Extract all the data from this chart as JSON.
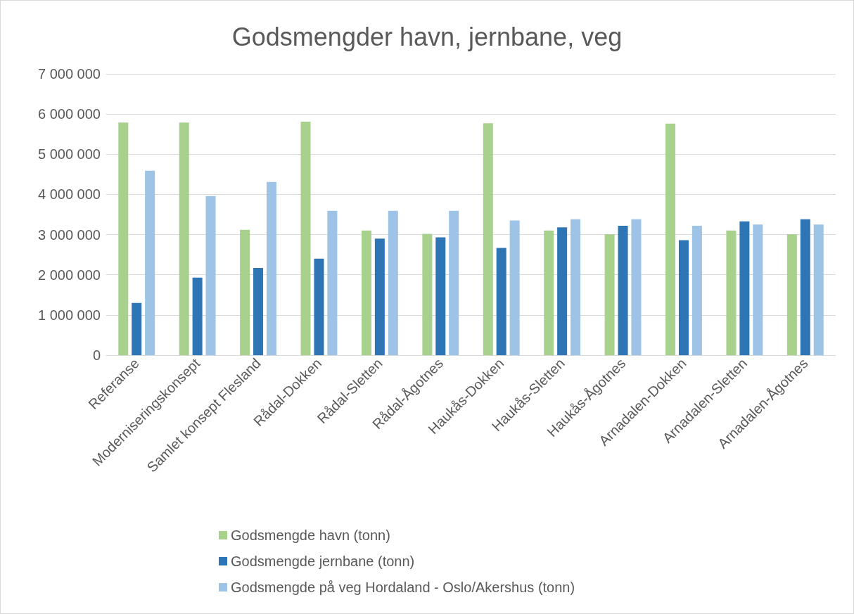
{
  "chart_data": {
    "type": "bar",
    "title": "Godsmengder havn, jernbane, veg",
    "categories": [
      "Referanse",
      "Moderniseringskonsept",
      "Samlet konsept Flesland",
      "Rådal-Dokken",
      "Rådal-Sletten",
      "Rådal-Ågotnes",
      "Haukås-Dokken",
      "Haukås-Sletten",
      "Haukås-Ågotnes",
      "Arnadalen-Dokken",
      "Arnadalen-Sletten",
      "Arnadalen-Ågotnes"
    ],
    "series": [
      {
        "name": "Godsmengde havn (tonn)",
        "color": "#a9d18e",
        "values": [
          5790000,
          5790000,
          3120000,
          5810000,
          3100000,
          3020000,
          5770000,
          3100000,
          3010000,
          5760000,
          3100000,
          3010000
        ]
      },
      {
        "name": "Godsmengde jernbane (tonn)",
        "color": "#2e75b6",
        "values": [
          1300000,
          1930000,
          2170000,
          2400000,
          2900000,
          2930000,
          2670000,
          3180000,
          3220000,
          2860000,
          3330000,
          3380000
        ]
      },
      {
        "name": "Godsmengde på veg Hordaland - Oslo/Akershus (tonn)",
        "color": "#9dc3e6",
        "values": [
          4590000,
          3960000,
          4310000,
          3590000,
          3590000,
          3590000,
          3350000,
          3380000,
          3380000,
          3220000,
          3250000,
          3250000
        ]
      }
    ],
    "ylim": [
      0,
      7000000
    ],
    "yticks": [
      {
        "value": 0,
        "label": "0"
      },
      {
        "value": 1000000,
        "label": "1 000 000"
      },
      {
        "value": 2000000,
        "label": "2 000 000"
      },
      {
        "value": 3000000,
        "label": "3 000 000"
      },
      {
        "value": 4000000,
        "label": "4 000 000"
      },
      {
        "value": 5000000,
        "label": "5 000 000"
      },
      {
        "value": 6000000,
        "label": "6 000 000"
      },
      {
        "value": 7000000,
        "label": "7 000 000"
      }
    ],
    "grid": "y",
    "legend": "bottom"
  }
}
